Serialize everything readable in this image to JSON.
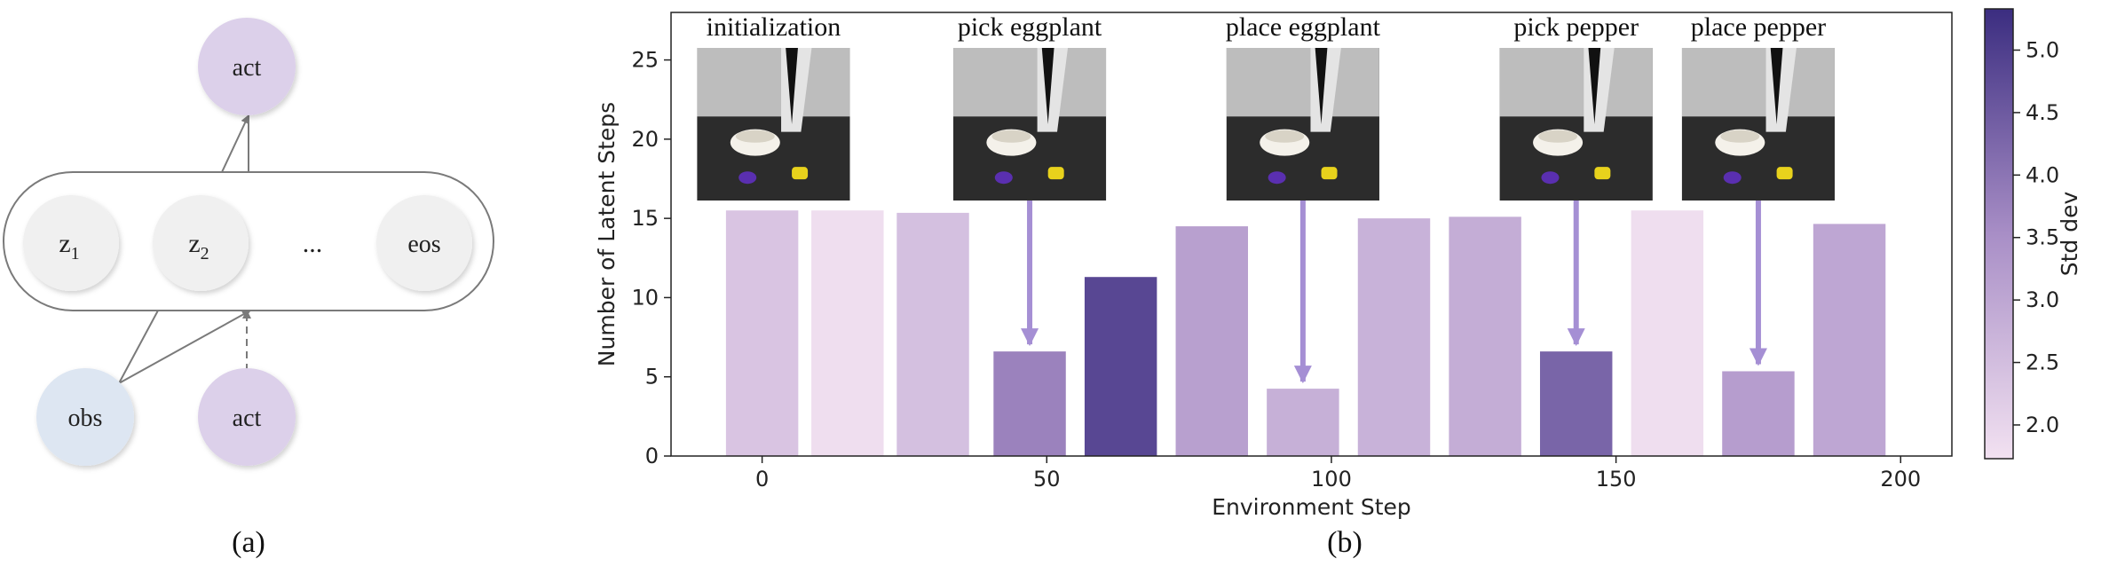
{
  "diagram": {
    "nodes": {
      "act_top": "act",
      "z1": "z",
      "z1_sub": "1",
      "z2": "z",
      "z2_sub": "2",
      "ellipsis": "...",
      "eos": "eos",
      "obs": "obs",
      "act_bottom": "act"
    },
    "caption": "(a)",
    "colors": {
      "act_fill": "#dcd0ea",
      "obs_fill": "#dde6f2",
      "latent_fill": "#f0f0f0",
      "edge": "#7a7a7a"
    }
  },
  "chart_caption": "(b)",
  "chart_data": {
    "type": "bar",
    "x": [
      0,
      15,
      30,
      47,
      63,
      79,
      95,
      111,
      127,
      143,
      159,
      175,
      191
    ],
    "values": [
      15.5,
      15.5,
      15.35,
      6.6,
      11.3,
      14.5,
      4.25,
      15.0,
      15.1,
      6.6,
      15.5,
      5.35,
      14.65
    ],
    "std_dev": [
      2.35,
      1.8,
      2.45,
      3.75,
      4.85,
      3.15,
      2.8,
      2.75,
      2.85,
      4.3,
      1.8,
      3.2,
      3.0
    ],
    "xlabel": "Environment Step",
    "ylabel": "Number of Latent Steps",
    "xlim": [
      -16,
      209
    ],
    "ylim": [
      0,
      28
    ],
    "xticks": [
      0,
      50,
      100,
      150,
      200
    ],
    "yticks": [
      0,
      5,
      10,
      15,
      20,
      25
    ],
    "grid": false,
    "colorbar": {
      "label": "Std dev",
      "range": [
        1.73,
        5.33
      ],
      "ticks": [
        "2.0",
        "2.5",
        "3.0",
        "3.5",
        "4.0",
        "4.5",
        "5.0"
      ],
      "tick_values": [
        2.0,
        2.5,
        3.0,
        3.5,
        4.0,
        4.5,
        5.0
      ],
      "color_low": "#f2e1f1",
      "color_mid": "#a88ec6",
      "color_high": "#3b2d80"
    },
    "annotations": [
      {
        "label": "initialization",
        "image_center_x": 2
      },
      {
        "label": "pick eggplant",
        "image_center_x": 47,
        "arrow_to_bar": 3
      },
      {
        "label": "place eggplant",
        "image_center_x": 95,
        "arrow_to_bar": 6
      },
      {
        "label": "pick pepper",
        "image_center_x": 143,
        "arrow_to_bar": 9
      },
      {
        "label": "place pepper",
        "image_center_x": 175,
        "arrow_to_bar": 11
      }
    ],
    "arrow_color": "#a58fd4"
  }
}
